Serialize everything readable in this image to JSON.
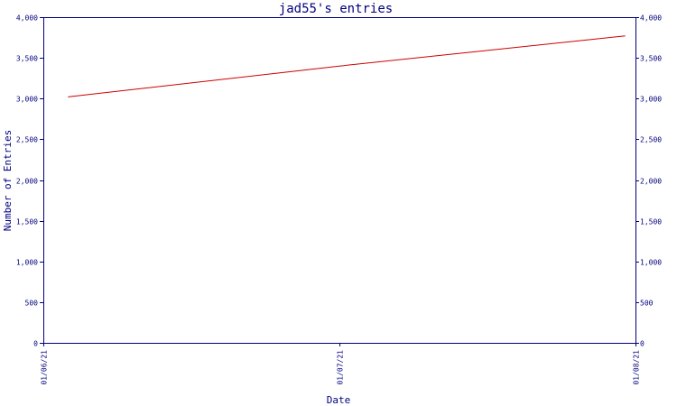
{
  "chart_data": {
    "type": "line",
    "title": "jad55's entries",
    "xlabel": "Date",
    "ylabel": "Number of Entries",
    "x_ticks": [
      "01/06/21",
      "01/07/21",
      "01/08/21"
    ],
    "y_ticks": [
      "0",
      "500",
      "1,000",
      "1,500",
      "2,000",
      "2,500",
      "3,000",
      "3,500",
      "4,000"
    ],
    "y_tick_values": [
      0,
      500,
      1000,
      1500,
      2000,
      2500,
      3000,
      3500,
      4000
    ],
    "ylim": [
      0,
      4000
    ],
    "xlim": [
      "01/06/21",
      "01/08/21"
    ],
    "grid": false,
    "legend": "none",
    "series": [
      {
        "color": "#cc0000",
        "points": [
          {
            "x": "01/06/21 02:00",
            "y": 3020
          },
          {
            "x": "01/07/21 00:00",
            "y": 3400
          },
          {
            "x": "01/07/21 23:10",
            "y": 3770
          }
        ]
      }
    ]
  }
}
